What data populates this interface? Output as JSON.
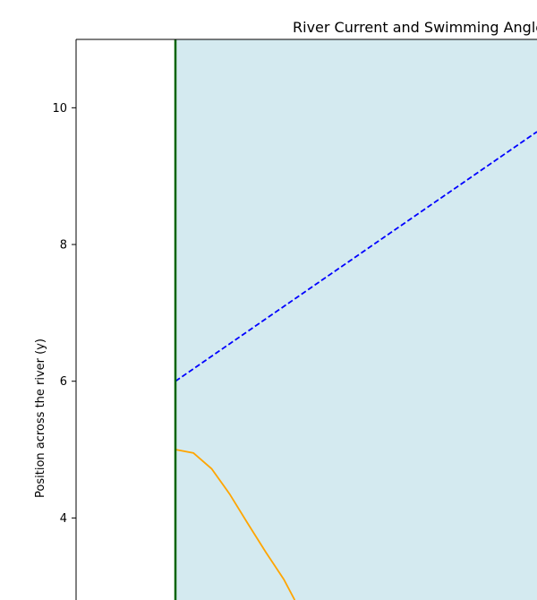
{
  "chart_data": {
    "type": "line",
    "title": "River Current and Swimming Angle",
    "xlabel": "",
    "ylabel": "Position across the river (y)",
    "ylim": [
      2.8,
      11
    ],
    "y_ticks": [
      4,
      6,
      8,
      10
    ],
    "grid": false,
    "series": [
      {
        "style": "dashed",
        "color": "#0000ff",
        "x": [
          0,
          1
        ],
        "y": [
          6.0,
          9.65
        ]
      },
      {
        "style": "solid",
        "color": "#ffa500",
        "x": [
          0,
          0.05,
          0.1,
          0.15,
          0.2,
          0.25,
          0.3,
          0.33
        ],
        "y": [
          5.0,
          4.95,
          4.72,
          4.35,
          3.92,
          3.5,
          3.1,
          2.8
        ]
      },
      {
        "style": "solid",
        "color": "#006400",
        "x": [
          0,
          0
        ],
        "y": [
          2.8,
          11
        ]
      }
    ],
    "colors": {
      "river": "#d4eaf0",
      "bank": "#006400",
      "path": "#0000ff",
      "current": "#ffa500"
    }
  }
}
